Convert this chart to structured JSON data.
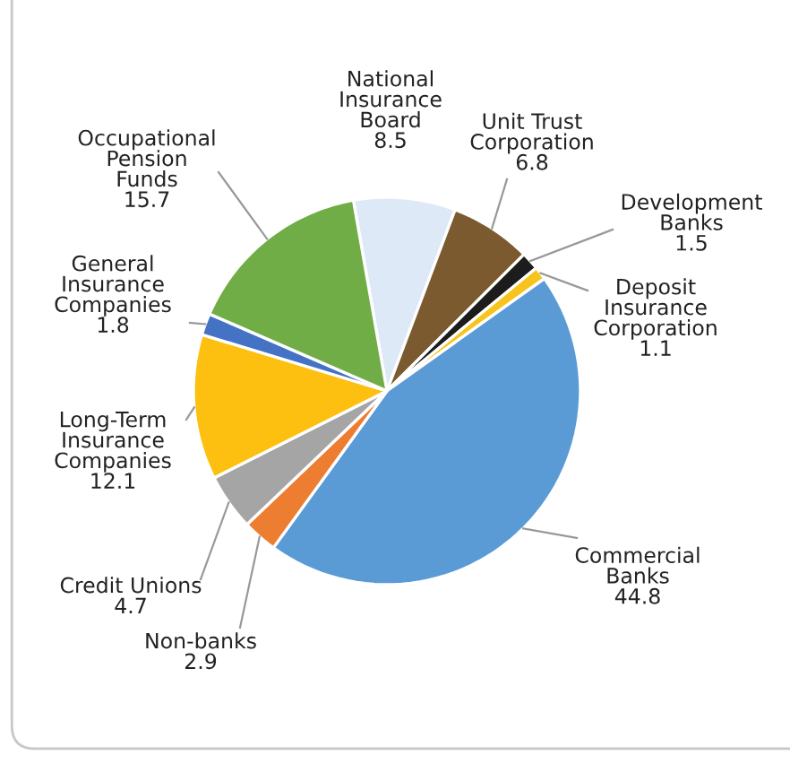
{
  "chart_data": {
    "type": "pie",
    "categories": [
      "National\nInsurance\nBoard",
      "Unit Trust\nCorporation",
      "Development\nBanks",
      "Deposit\nInsurance\nCorporation",
      "Commercial\nBanks",
      "Non-banks",
      "Credit Unions",
      "Long-Term\nInsurance\nCompanies",
      "General\nInsurance\nCompanies",
      "Occupational\nPension\nFunds"
    ],
    "values": [
      8.5,
      6.8,
      1.5,
      1.1,
      44.8,
      2.9,
      4.7,
      12.1,
      1.8,
      15.7
    ],
    "colors": [
      "#dde9f6",
      "#7a5a2e",
      "#1c1c1c",
      "#f7c41d",
      "#5b9bd5",
      "#ed7d31",
      "#a5a5a5",
      "#fdc010",
      "#4472c4",
      "#71ad47"
    ],
    "data_labels": true
  }
}
